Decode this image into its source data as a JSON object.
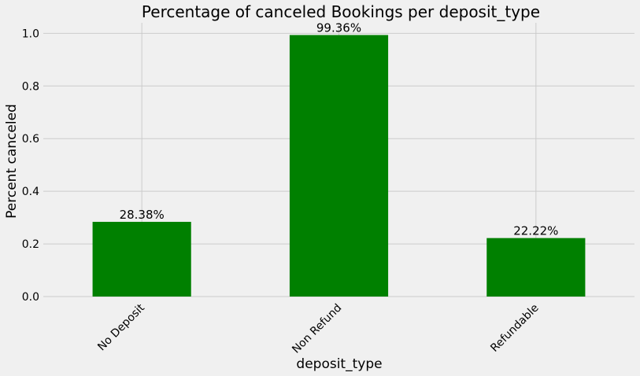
{
  "chart_data": {
    "type": "bar",
    "title": "Percentage of canceled Bookings per deposit_type",
    "xlabel": "deposit_type",
    "ylabel": "Percent canceled",
    "categories": [
      "No Deposit",
      "Non Refund",
      "Refundable"
    ],
    "values": [
      0.2838,
      0.9936,
      0.2222
    ],
    "data_labels": [
      "28.38%",
      "99.36%",
      "22.22%"
    ],
    "ylim": [
      0,
      1.04
    ],
    "yticks": [
      0.0,
      0.2,
      0.4,
      0.6,
      0.8,
      1.0
    ],
    "ytick_labels": [
      "0.0",
      "0.2",
      "0.4",
      "0.6",
      "0.8",
      "1.0"
    ],
    "grid": true,
    "bar_color": "#008000",
    "background_color": "#f0f0f0"
  }
}
